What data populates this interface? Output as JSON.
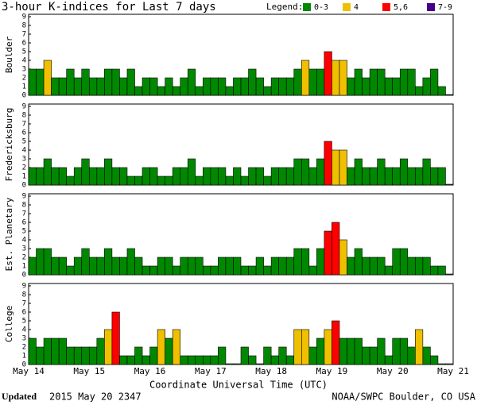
{
  "chart_data": {
    "type": "bar",
    "title": "3-hour K-indices for Last 7 days",
    "legend_title": "Legend:",
    "legend": [
      {
        "label": "0-3",
        "color": "#008800"
      },
      {
        "label": "4",
        "color": "#f0c000"
      },
      {
        "label": "5,6",
        "color": "#ff0000"
      },
      {
        "label": "7-9",
        "color": "#440088"
      }
    ],
    "ylim": [
      0,
      9
    ],
    "yticks": [
      0,
      1,
      2,
      3,
      4,
      5,
      6,
      7,
      8,
      9
    ],
    "x_labels": [
      "May 14",
      "May 15",
      "May 16",
      "May 17",
      "May 18",
      "May 19",
      "May 20",
      "May 21"
    ],
    "x_label": "Coordinate Universal Time (UTC)",
    "panels": [
      {
        "name": "Boulder",
        "values": [
          3,
          3,
          4,
          2,
          2,
          3,
          2,
          3,
          2,
          2,
          3,
          3,
          2,
          3,
          1,
          2,
          2,
          1,
          2,
          1,
          2,
          3,
          1,
          2,
          2,
          2,
          1,
          2,
          2,
          3,
          2,
          1,
          2,
          2,
          2,
          3,
          4,
          3,
          3,
          5,
          4,
          4,
          2,
          3,
          2,
          3,
          3,
          2,
          2,
          3,
          3,
          1,
          2,
          3,
          1,
          0
        ]
      },
      {
        "name": "Fredericksburg",
        "values": [
          2,
          2,
          3,
          2,
          2,
          1,
          2,
          3,
          2,
          2,
          3,
          2,
          2,
          1,
          1,
          2,
          2,
          1,
          1,
          2,
          2,
          3,
          1,
          2,
          2,
          2,
          1,
          2,
          1,
          2,
          2,
          1,
          2,
          2,
          2,
          3,
          3,
          2,
          3,
          5,
          4,
          4,
          2,
          3,
          2,
          2,
          3,
          2,
          2,
          3,
          2,
          2,
          3,
          2,
          2,
          0
        ]
      },
      {
        "name": "Est. Planetary",
        "values": [
          2,
          3,
          3,
          2,
          2,
          1,
          2,
          3,
          2,
          2,
          3,
          2,
          2,
          3,
          2,
          1,
          1,
          2,
          2,
          1,
          2,
          2,
          2,
          1,
          1,
          2,
          2,
          2,
          1,
          1,
          2,
          1,
          2,
          2,
          2,
          3,
          3,
          1,
          3,
          5,
          6,
          4,
          2,
          3,
          2,
          2,
          2,
          1,
          3,
          3,
          2,
          2,
          2,
          1,
          1,
          0
        ]
      },
      {
        "name": "College",
        "values": [
          3,
          2,
          3,
          3,
          3,
          2,
          2,
          2,
          2,
          3,
          4,
          6,
          1,
          1,
          2,
          1,
          2,
          4,
          3,
          4,
          1,
          1,
          1,
          1,
          1,
          2,
          0,
          0,
          2,
          1,
          0,
          2,
          1,
          2,
          1,
          4,
          4,
          2,
          3,
          4,
          5,
          3,
          3,
          3,
          2,
          2,
          3,
          1,
          3,
          3,
          2,
          4,
          2,
          1,
          0,
          0
        ]
      }
    ]
  },
  "footer": {
    "updated_label": "Updated",
    "updated": "2015 May 20 2347",
    "source": "NOAA/SWPC Boulder, CO USA"
  }
}
